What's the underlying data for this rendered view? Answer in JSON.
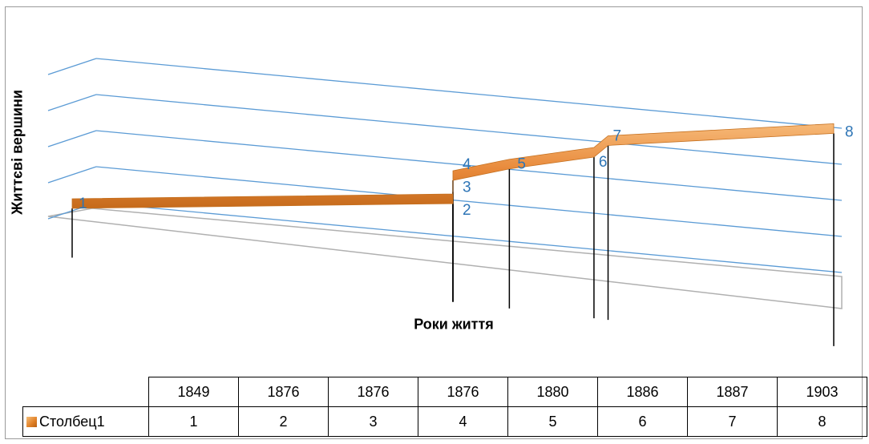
{
  "chart_data": {
    "type": "line",
    "style": "3d-ribbon",
    "xlabel": "Роки життя",
    "ylabel": "Життєві вершини",
    "categories": [
      "1849",
      "1876",
      "1876",
      "1876",
      "1880",
      "1886",
      "1887",
      "1903"
    ],
    "series": [
      {
        "name": "Столбец1",
        "values": [
          1,
          2,
          3,
          4,
          5,
          6,
          7,
          8
        ],
        "color": "#e8893a"
      }
    ],
    "data_labels": [
      "1",
      "2",
      "3",
      "4",
      "5",
      "6",
      "7",
      "8"
    ],
    "data_label_color": "#2e75b6",
    "gridline_color": "#5b9bd5",
    "grid": true,
    "legend": "data-table",
    "data_table": true
  }
}
